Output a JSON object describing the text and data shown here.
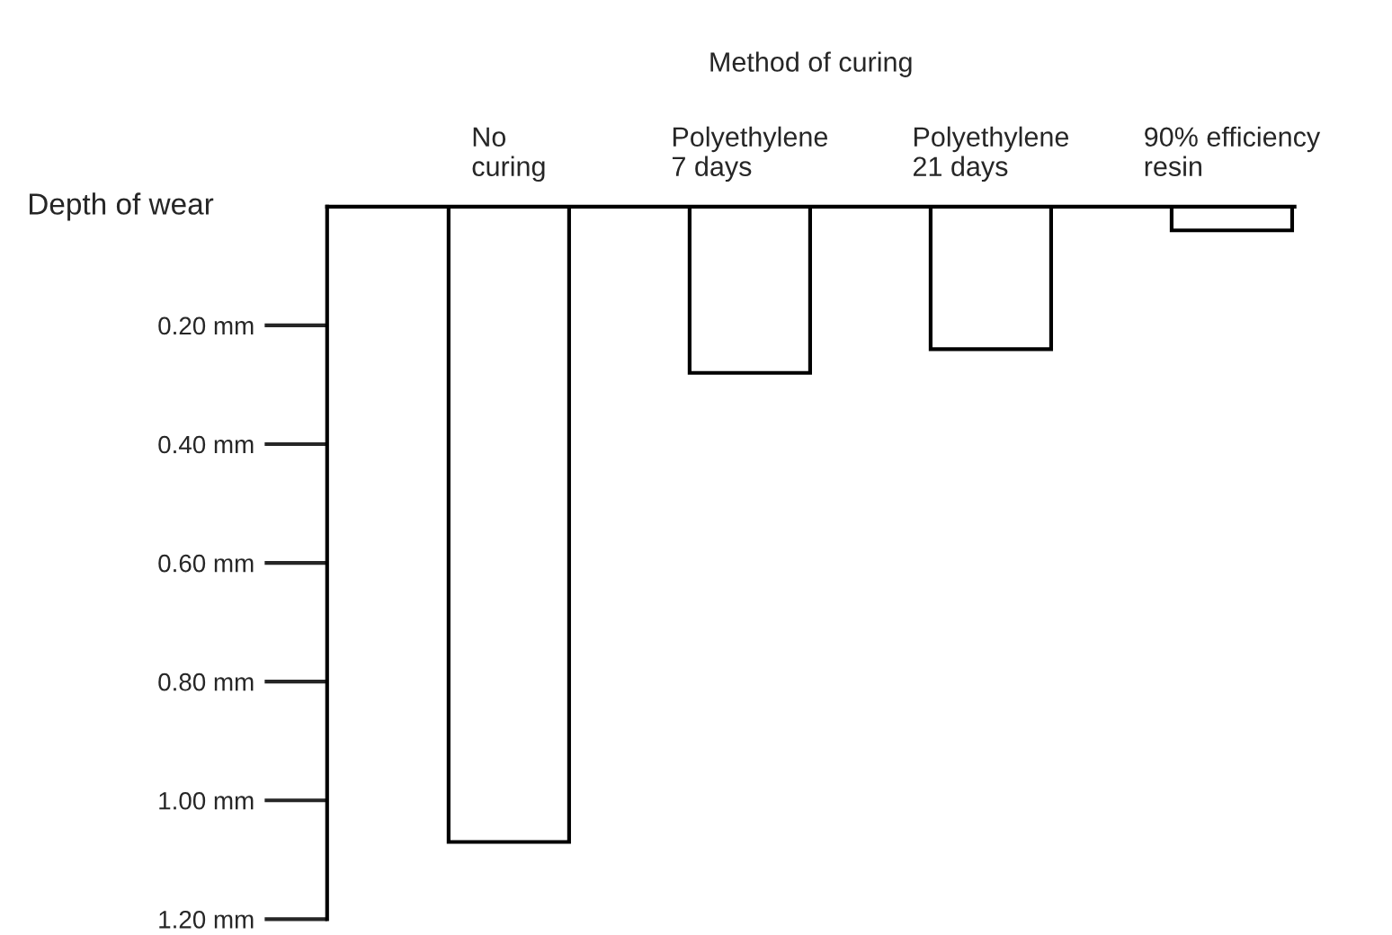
{
  "chart_data": {
    "type": "bar",
    "xlabel": "Method of curing",
    "ylabel": "Depth of wear",
    "categories": [
      "No\ncuring",
      "Polyethylene\n7 days",
      "Polyethylene\n21 days",
      "90% efficiency\nresin"
    ],
    "values": [
      1.07,
      0.28,
      0.24,
      0.04
    ],
    "color": "#ffffff",
    "ylim": [
      1.2,
      0
    ],
    "yticks": [
      {
        "value": 0.2,
        "label": "0.20 mm"
      },
      {
        "value": 0.4,
        "label": "0.40 mm"
      },
      {
        "value": 0.6,
        "label": "0.60 mm"
      },
      {
        "value": 0.8,
        "label": "0.80 mm"
      },
      {
        "value": 1.0,
        "label": "1.00 mm"
      },
      {
        "value": 1.2,
        "label": "1.20 mm"
      }
    ],
    "grid": false,
    "legend": false
  }
}
